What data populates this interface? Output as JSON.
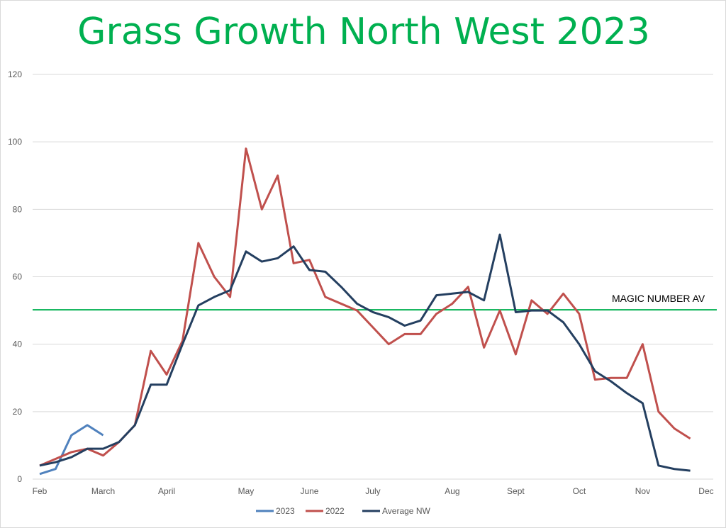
{
  "chart_data": {
    "type": "line",
    "title": "Grass Growth North West 2023",
    "xlabel": "",
    "ylabel": "",
    "ylim": [
      0,
      120
    ],
    "y_ticks": [
      0,
      20,
      40,
      60,
      80,
      100,
      120
    ],
    "x_tick_labels": [
      "Feb",
      "March",
      "April",
      "May",
      "June",
      "July",
      "Aug",
      "Sept",
      "Oct",
      "Nov",
      "Dec"
    ],
    "grid": true,
    "legend": "bottom",
    "series": [
      {
        "name": "2023",
        "color": "#4f81bd",
        "values": [
          1.5,
          3,
          13,
          16,
          13
        ]
      },
      {
        "name": "2022",
        "color": "#c0504d",
        "values": [
          4,
          6,
          8,
          9,
          7,
          11,
          16,
          38,
          31,
          41,
          70,
          60,
          54,
          98,
          80,
          90,
          64,
          65,
          54,
          52,
          50,
          45,
          40,
          43,
          43,
          49,
          52,
          57,
          39,
          50,
          37,
          53,
          49,
          55,
          49,
          29.5,
          30,
          30,
          40,
          20,
          15,
          12
        ]
      },
      {
        "name": "Average NW",
        "color": "#243f60",
        "values": [
          4,
          5,
          6.5,
          9,
          9,
          11,
          16,
          28,
          28,
          40,
          51.5,
          54,
          56,
          67.5,
          64.5,
          65.5,
          69,
          62,
          61.5,
          57,
          52,
          49.5,
          48,
          45.5,
          47,
          54.5,
          55,
          55.5,
          53,
          72.5,
          49.5,
          50,
          50,
          46.5,
          40,
          32,
          29,
          25.5,
          22.5,
          4,
          3,
          2.5
        ]
      }
    ],
    "reference_line": {
      "label": "MAGIC NUMBER AV",
      "value": 50.2,
      "color": "#00b050"
    }
  }
}
